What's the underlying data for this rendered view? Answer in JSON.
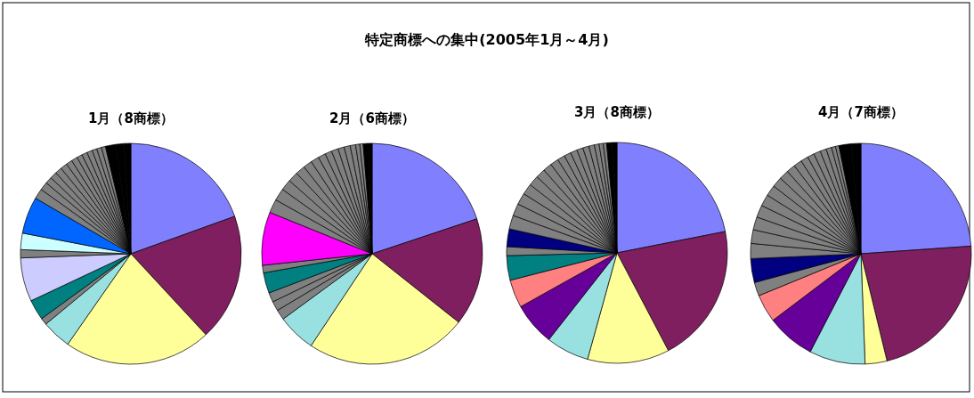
{
  "chart_data": [
    {
      "type": "pie",
      "title": "1月（8商標）",
      "annotations": [
        "特定商標への集中(2005年1月～4月)"
      ],
      "categories": [
        null,
        null,
        null,
        null,
        null,
        null,
        null,
        null,
        null,
        null,
        null,
        null,
        null,
        null,
        null,
        null,
        null,
        null,
        null,
        null,
        null,
        null,
        null,
        null,
        null,
        null,
        null
      ],
      "values": [
        19.5,
        18.6,
        21.6,
        4.3,
        1,
        3,
        6.4,
        1.2,
        2.4,
        5.4,
        1.5,
        1.2,
        1,
        1,
        1,
        1,
        0.9,
        0.9,
        0.8,
        0.8,
        0.8,
        0.7,
        0.7,
        0.6,
        1.5,
        1.2,
        1.0
      ],
      "colors": [
        "#8080ff",
        "#7f1f5f",
        "#ffff99",
        "#99e0e0",
        "#808080",
        "#008080",
        "#ccccff",
        "#808080",
        "#ccffff",
        "#0066ff",
        "#808080",
        "#808080",
        "#808080",
        "#808080",
        "#808080",
        "#808080",
        "#808080",
        "#808080",
        "#808080",
        "#808080",
        "#808080",
        "#808080",
        "#808080",
        "#808080",
        "#000000",
        "#000000",
        "#000000"
      ]
    },
    {
      "type": "pie",
      "title": "2月（6商標）",
      "categories": [
        null,
        null,
        null,
        null,
        null,
        null,
        null,
        null,
        null,
        null,
        null,
        null,
        null,
        null,
        null,
        null,
        null,
        null,
        null,
        null,
        null,
        null,
        null,
        null,
        null,
        null,
        null
      ],
      "values": [
        19.9,
        15.8,
        23.7,
        5.6,
        1.5,
        1.4,
        1.4,
        3,
        1.1,
        7.8,
        2,
        1.8,
        1.6,
        1.5,
        1.4,
        1.3,
        1.2,
        1.1,
        1,
        1,
        0.9,
        0.9,
        0.8,
        0.6,
        0.5,
        0.7,
        0.6
      ],
      "colors": [
        "#8080ff",
        "#7f1f5f",
        "#ffff99",
        "#99e0e0",
        "#808080",
        "#808080",
        "#808080",
        "#008080",
        "#808080",
        "#ff00ff",
        "#808080",
        "#808080",
        "#808080",
        "#808080",
        "#808080",
        "#808080",
        "#808080",
        "#808080",
        "#808080",
        "#808080",
        "#808080",
        "#808080",
        "#808080",
        "#808080",
        "#808080",
        "#000000",
        "#000000"
      ]
    },
    {
      "type": "pie",
      "title": "3月（8商標）",
      "categories": [
        null,
        null,
        null,
        null,
        null,
        null,
        null,
        null,
        null,
        null,
        null,
        null,
        null,
        null,
        null,
        null,
        null,
        null,
        null,
        null,
        null,
        null,
        null,
        null,
        null,
        null,
        null,
        null
      ],
      "values": [
        21.9,
        20.4,
        12,
        6.3,
        6.3,
        4.1,
        3.6,
        1.3,
        2.6,
        2,
        1.8,
        1.7,
        1.6,
        1.5,
        1.4,
        1.3,
        1.2,
        1.1,
        1,
        1,
        0.9,
        0.9,
        0.8,
        0.7,
        0.6,
        0.5,
        0.8,
        0.7
      ],
      "colors": [
        "#8080ff",
        "#7f1f5f",
        "#ffff99",
        "#99e0e0",
        "#660099",
        "#ff8080",
        "#008080",
        "#808080",
        "#000080",
        "#808080",
        "#808080",
        "#808080",
        "#808080",
        "#808080",
        "#808080",
        "#808080",
        "#808080",
        "#808080",
        "#808080",
        "#808080",
        "#808080",
        "#808080",
        "#808080",
        "#808080",
        "#808080",
        "#808080",
        "#000000",
        "#000000"
      ]
    },
    {
      "type": "pie",
      "title": "4月（7商標）",
      "categories": [
        null,
        null,
        null,
        null,
        null,
        null,
        null,
        null,
        null,
        null,
        null,
        null,
        null,
        null,
        null,
        null,
        null,
        null,
        null,
        null,
        null,
        null,
        null,
        null,
        null,
        null,
        null
      ],
      "values": [
        23.9,
        22.3,
        3.2,
        8.2,
        7.1,
        4.1,
        2,
        3.5,
        2.2,
        2,
        1.9,
        1.8,
        1.7,
        1.6,
        1.5,
        1.4,
        1.3,
        1.2,
        1.1,
        1,
        1,
        0.9,
        0.8,
        0.6,
        0.5,
        1.8,
        1.4
      ],
      "colors": [
        "#8080ff",
        "#7f1f5f",
        "#ffff99",
        "#99e0e0",
        "#660099",
        "#ff8080",
        "#808080",
        "#000080",
        "#808080",
        "#808080",
        "#808080",
        "#808080",
        "#808080",
        "#808080",
        "#808080",
        "#808080",
        "#808080",
        "#808080",
        "#808080",
        "#808080",
        "#808080",
        "#808080",
        "#808080",
        "#808080",
        "#808080",
        "#000000",
        "#000000"
      ]
    }
  ]
}
